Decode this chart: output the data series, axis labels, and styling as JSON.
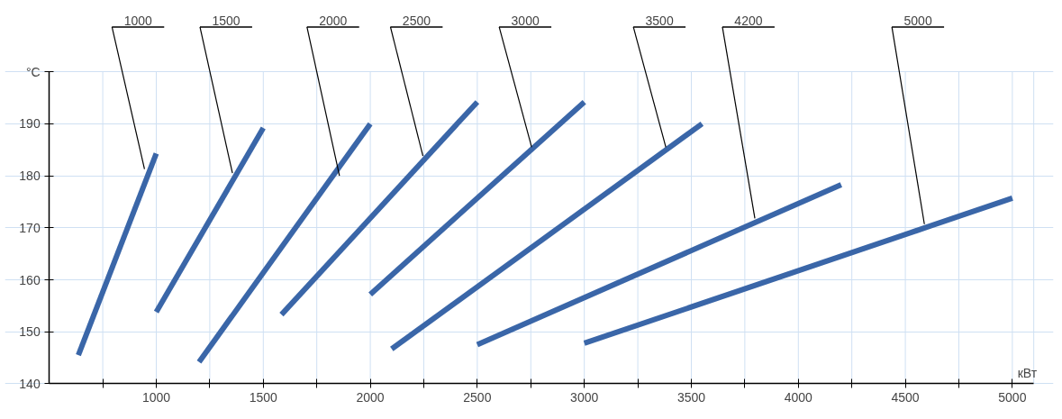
{
  "chart_data": {
    "type": "line",
    "xlabel": "кВт",
    "ylabel": "°C",
    "series": [
      {
        "color": "#3a66a8",
        "x": [
          636,
          1000
        ],
        "values": [
          145.5,
          184.3
        ]
      },
      {
        "color": "#3a66a8",
        "x": [
          1000,
          1500
        ],
        "values": [
          153.8,
          189.2
        ]
      },
      {
        "color": "#3a66a8",
        "x": [
          1200,
          2000
        ],
        "values": [
          144.2,
          190
        ]
      },
      {
        "color": "#3a66a8",
        "x": [
          1585,
          2500
        ],
        "values": [
          153.3,
          194.2
        ]
      },
      {
        "color": "#3a66a8",
        "x": [
          2000,
          3000
        ],
        "values": [
          157.2,
          194.2
        ]
      },
      {
        "color": "#3a66a8",
        "x": [
          2100,
          3550
        ],
        "values": [
          146.7,
          190
        ]
      },
      {
        "color": "#3a66a8",
        "x": [
          2500,
          4200
        ],
        "values": [
          147.5,
          178.3
        ]
      },
      {
        "color": "#3a66a8",
        "x": [
          3000,
          5000
        ],
        "values": [
          147.8,
          175.7
        ]
      }
    ],
    "annotations": [
      {
        "text": "1000",
        "x": 945,
        "y": 181.3
      },
      {
        "text": "1500",
        "x": 1356,
        "y": 180.5
      },
      {
        "text": "2000",
        "x": 1856,
        "y": 180
      },
      {
        "text": "2500",
        "x": 2246,
        "y": 183.8
      },
      {
        "text": "3000",
        "x": 2754,
        "y": 185.5
      },
      {
        "text": "3500",
        "x": 3381,
        "y": 185.5
      },
      {
        "text": "4200",
        "x": 3797,
        "y": 171.8
      },
      {
        "text": "5000",
        "x": 4589,
        "y": 170.7
      }
    ],
    "xlim": [
      500,
      5100
    ],
    "ylim": [
      140,
      200
    ],
    "xticks": [
      {
        "value": 750,
        "label": null
      },
      1000,
      {
        "value": 1250,
        "label": null
      },
      1500,
      {
        "value": 1750,
        "label": null
      },
      2000,
      {
        "value": 2250,
        "label": null
      },
      2500,
      {
        "value": 2750,
        "label": null
      },
      3000,
      {
        "value": 3250,
        "label": null
      },
      3500,
      {
        "value": 3750,
        "label": null
      },
      4000,
      {
        "value": 4250,
        "label": null
      },
      4500,
      {
        "value": 4750,
        "label": null
      },
      5000
    ],
    "yticks": [
      140,
      150,
      160,
      170,
      180,
      190,
      {
        "value": 200,
        "label": null
      }
    ],
    "grid": true,
    "marker": "none",
    "line_style": "solid"
  }
}
